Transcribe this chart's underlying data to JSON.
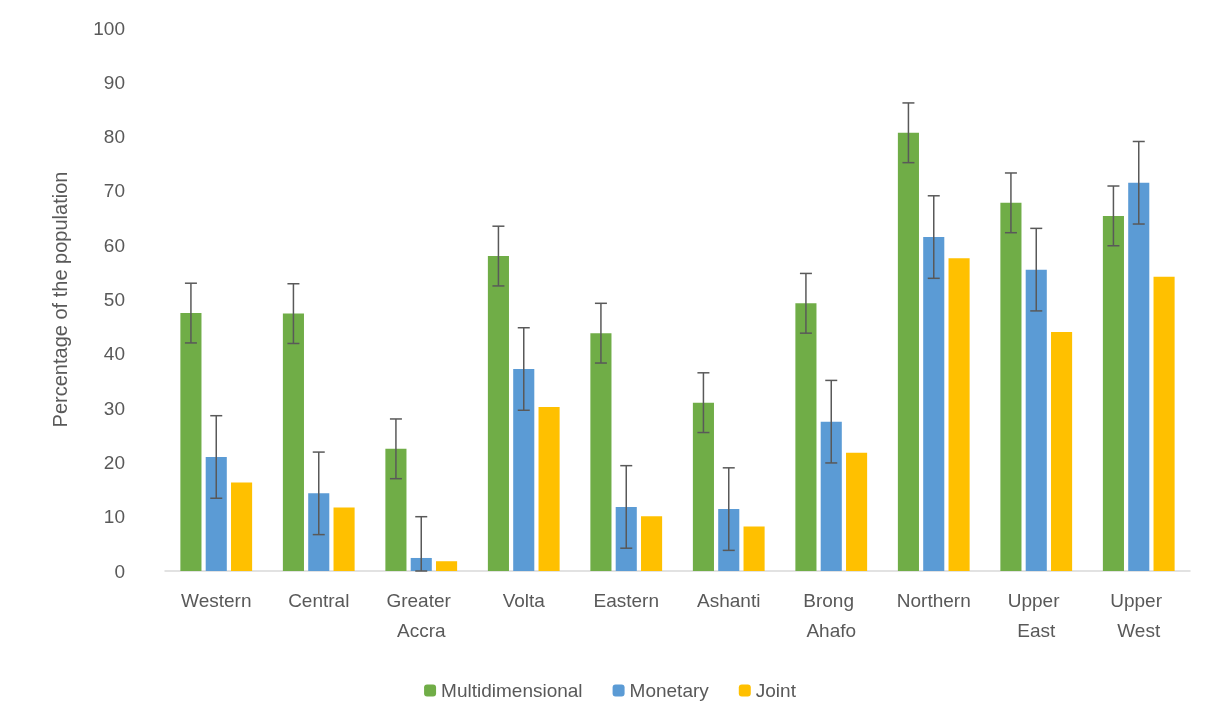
{
  "chart_data": {
    "type": "bar",
    "ylabel": "Percentage of the population",
    "categories": [
      "Western",
      "Central",
      "Greater Accra",
      "Volta",
      "Eastern",
      "Ashanti",
      "Brong Ahafo",
      "Northern",
      "Upper East",
      "Upper West"
    ],
    "series": [
      {
        "name": "Multidimensional",
        "color": "#70ad47",
        "values": [
          47.5,
          47.4,
          22.5,
          58,
          43.8,
          31,
          49.3,
          80.7,
          67.8,
          65.4
        ],
        "errors": [
          5.5,
          5.5,
          5.5,
          5.5,
          5.5,
          5.5,
          5.5,
          5.5,
          5.5,
          5.5
        ]
      },
      {
        "name": "Monetary",
        "color": "#5b9bd5",
        "values": [
          21,
          14.3,
          2.4,
          37.2,
          11.8,
          11.4,
          27.5,
          61.5,
          55.5,
          71.5
        ],
        "errors": [
          7.6,
          7.6,
          [
            0,
            10
          ],
          7.6,
          7.6,
          7.6,
          7.6,
          7.6,
          7.6,
          7.6
        ]
      },
      {
        "name": "Joint",
        "color": "#ffc000",
        "values": [
          16.3,
          11.7,
          1.8,
          30.2,
          10.1,
          8.2,
          21.8,
          57.6,
          44,
          54.2
        ]
      }
    ],
    "ylim": [
      0,
      100
    ],
    "yticks": [
      0,
      10,
      20,
      30,
      40,
      50,
      60,
      70,
      80,
      90,
      100
    ],
    "grid": false,
    "legend": "bottom"
  }
}
